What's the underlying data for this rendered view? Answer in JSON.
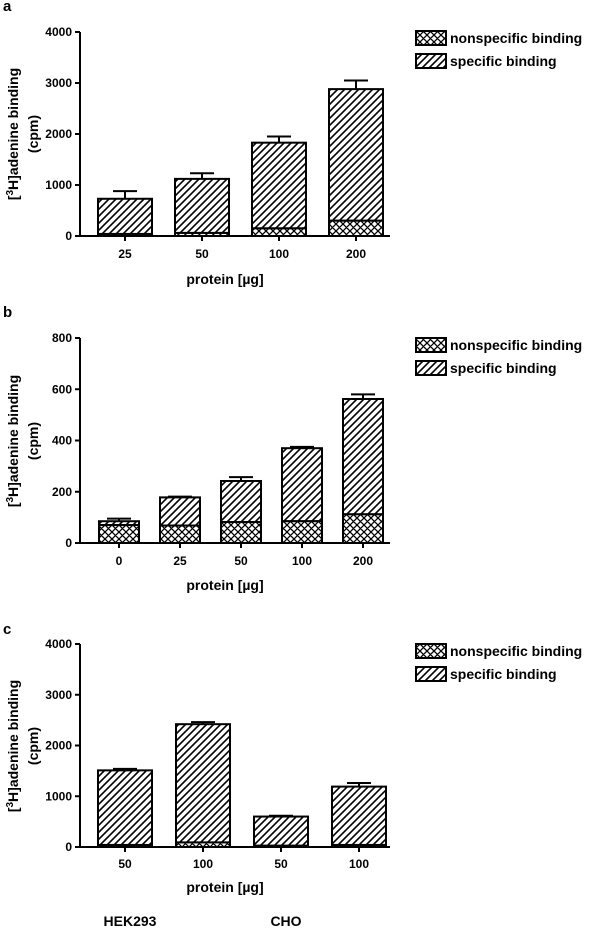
{
  "chart_data": [
    {
      "panel_label": "a",
      "type": "bar",
      "stacked": true,
      "categories": [
        "25",
        "50",
        "100",
        "200"
      ],
      "series": [
        {
          "name": "nonspecific binding",
          "values": [
            40,
            60,
            150,
            300
          ]
        },
        {
          "name": "specific binding",
          "values": [
            690,
            1060,
            1680,
            2580
          ]
        }
      ],
      "errors": [
        150,
        110,
        120,
        170
      ],
      "ylabel_lines": [
        "[3H]adenine binding",
        "(cpm)"
      ],
      "xlabel": "protein [µg]",
      "ylim": [
        0,
        4000
      ],
      "yticks": [
        "0",
        "1000",
        "2000",
        "3000",
        "4000"
      ],
      "legend_position": "top-right"
    },
    {
      "panel_label": "b",
      "type": "bar",
      "stacked": true,
      "categories": [
        "0",
        "25",
        "50",
        "100",
        "200"
      ],
      "series": [
        {
          "name": "nonspecific binding",
          "values": [
            70,
            68,
            82,
            85,
            112
          ]
        },
        {
          "name": "specific binding",
          "values": [
            15,
            110,
            160,
            285,
            450
          ]
        }
      ],
      "errors": [
        10,
        3,
        15,
        5,
        18
      ],
      "ylabel_lines": [
        "[3H]adenine binding",
        "(cpm)"
      ],
      "xlabel": "protein [µg]",
      "ylim": [
        0,
        800
      ],
      "yticks": [
        "0",
        "200",
        "400",
        "600",
        "800"
      ],
      "legend_position": "top-right"
    },
    {
      "panel_label": "c",
      "type": "bar",
      "stacked": true,
      "categories": [
        "50",
        "100",
        "50",
        "100"
      ],
      "groups": [
        "HEK293",
        "CHO"
      ],
      "series": [
        {
          "name": "nonspecific binding",
          "values": [
            40,
            90,
            25,
            40
          ]
        },
        {
          "name": "specific binding",
          "values": [
            1470,
            2330,
            575,
            1150
          ]
        }
      ],
      "errors": [
        30,
        40,
        15,
        70
      ],
      "ylabel_lines": [
        "[3H]adenine binding",
        "(cpm)"
      ],
      "xlabel": "protein [µg]",
      "ylim": [
        0,
        4000
      ],
      "yticks": [
        "0",
        "1000",
        "2000",
        "3000",
        "4000"
      ],
      "legend_position": "top-right"
    }
  ]
}
